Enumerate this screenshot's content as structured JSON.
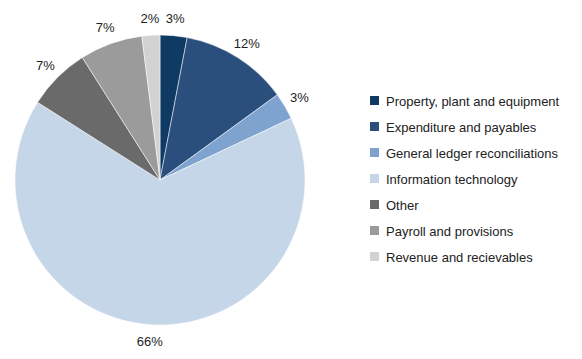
{
  "chart_data": {
    "type": "pie",
    "categories": [
      "Property, plant and equipment",
      "Expenditure and payables",
      "General ledger reconciliations",
      "Information technology",
      "Other",
      "Payroll and provisions",
      "Revenue and recievables"
    ],
    "values": [
      3,
      12,
      3,
      66,
      7,
      7,
      2
    ],
    "value_labels": [
      "3%",
      "12%",
      "3%",
      "66%",
      "7%",
      "7%",
      "2%"
    ],
    "colors": [
      "#0e3a63",
      "#2b4f7d",
      "#7fa3cf",
      "#c6d6e9",
      "#6a6a6a",
      "#9b9b9b",
      "#d2d2d2"
    ],
    "data_labels": true,
    "legend": "right"
  }
}
